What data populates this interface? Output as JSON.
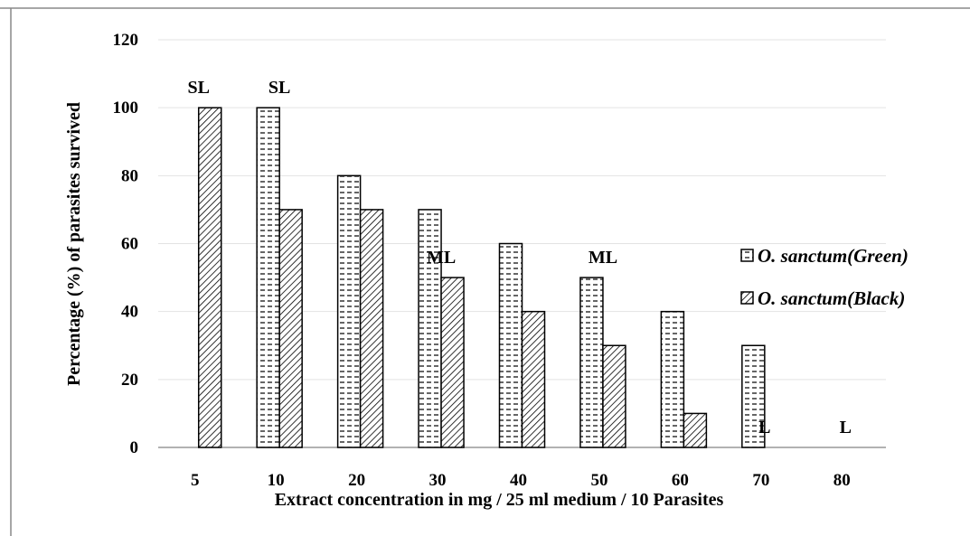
{
  "chart_data": {
    "type": "bar",
    "xlabel": "Extract concentration in mg / 25 ml medium / 10 Parasites",
    "ylabel": "Percentage (%)  of parasites survived",
    "categories": [
      "5",
      "10",
      "20",
      "30",
      "40",
      "50",
      "60",
      "70",
      "80"
    ],
    "series": [
      {
        "name": "O. sanctum(Green)",
        "values": [
          null,
          100,
          80,
          70,
          60,
          50,
          40,
          30,
          null
        ],
        "pattern": "horizontal-dashes",
        "color": "#000000"
      },
      {
        "name": "O. sanctum(Black)",
        "values": [
          100,
          70,
          70,
          50,
          40,
          30,
          10,
          null,
          null
        ],
        "pattern": "diagonal-hatch",
        "color": "#000000"
      }
    ],
    "ylim": [
      0,
      120
    ],
    "yticks": [
      0,
      20,
      40,
      60,
      80,
      100,
      120
    ],
    "grid": true,
    "legend": "right",
    "annotations": [
      {
        "category": "5",
        "text": "SL",
        "value": 100
      },
      {
        "category": "10",
        "text": "SL",
        "value": 100
      },
      {
        "category": "30",
        "text": "ML",
        "value": 50
      },
      {
        "category": "50",
        "text": "ML",
        "value": 50
      },
      {
        "category": "70",
        "text": "L",
        "value": 0
      },
      {
        "category": "80",
        "text": "L",
        "value": 0
      }
    ]
  }
}
